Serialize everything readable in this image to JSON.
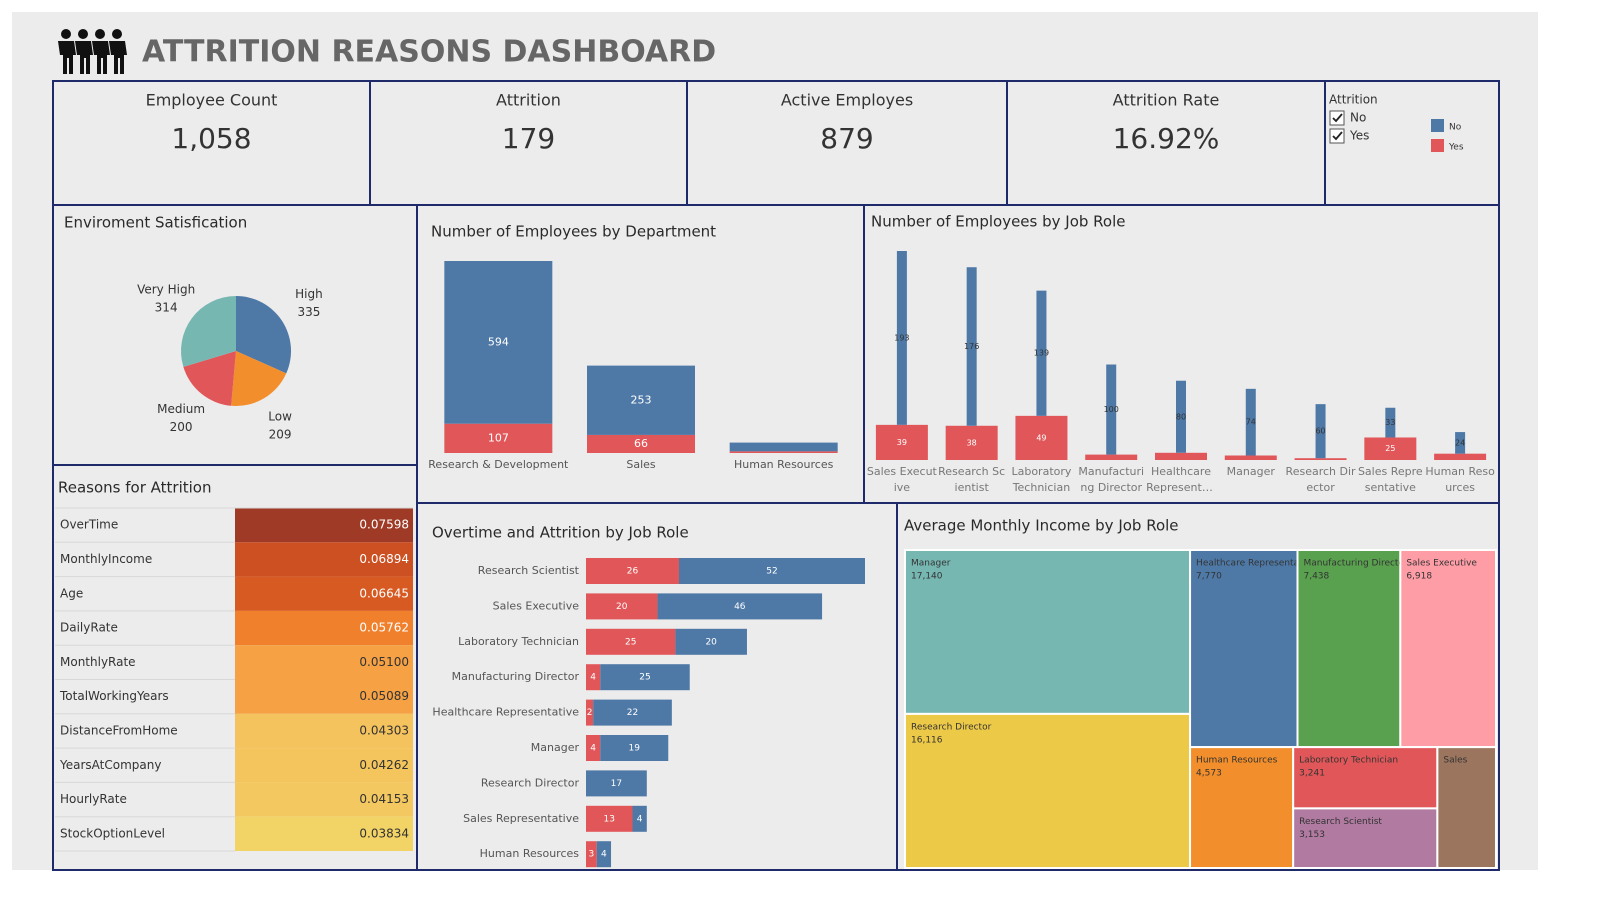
{
  "header": {
    "title": "ATTRITION REASONS DASHBOARD"
  },
  "kpis": [
    {
      "label": "Employee Count",
      "value": "1,058"
    },
    {
      "label": "Attrition",
      "value": "179"
    },
    {
      "label": "Active Employes",
      "value": "879"
    },
    {
      "label": "Attrition Rate",
      "value": "16.92%"
    }
  ],
  "legend": {
    "title": "Attrition",
    "items": [
      "No",
      "Yes"
    ]
  },
  "chart_data": [
    {
      "type": "pie",
      "title": "Enviroment Satisfication",
      "categories": [
        "High",
        "Low",
        "Medium",
        "Very High"
      ],
      "values": [
        335,
        209,
        200,
        314
      ],
      "colors": [
        "#4e79a7",
        "#f28e2b",
        "#e15759",
        "#76b7b2"
      ]
    },
    {
      "type": "stacked-bar",
      "title": "Number of Employees by Department",
      "categories": [
        "Research & Development",
        "Sales",
        "Human Resources"
      ],
      "series": [
        {
          "name": "No",
          "color": "#4e79a7",
          "values": [
            594,
            253,
            32
          ]
        },
        {
          "name": "Yes",
          "color": "#e15759",
          "values": [
            107,
            66,
            6
          ]
        }
      ]
    },
    {
      "type": "stacked-bar-narrow",
      "title": "Number of Employees by Job Role",
      "categories": [
        "Sales Executive",
        "Research Scientist",
        "Laboratory Technician",
        "Manufacturing Director",
        "Healthcare Representative",
        "Manager",
        "Research Director",
        "Sales Representative",
        "Human Resources"
      ],
      "series": [
        {
          "name": "No",
          "color": "#4e79a7",
          "values": [
            193,
            176,
            139,
            100,
            80,
            74,
            60,
            33,
            24
          ]
        },
        {
          "name": "Yes",
          "color": "#e15759",
          "values": [
            39,
            38,
            49,
            6,
            8,
            5,
            2,
            25,
            7
          ]
        }
      ]
    },
    {
      "type": "stacked-hbar",
      "title": "Overtime and Attrition by Job Role",
      "categories": [
        "Research Scientist",
        "Sales Executive",
        "Laboratory Technician",
        "Manufacturing Director",
        "Healthcare Representative",
        "Manager",
        "Research Director",
        "Sales Representative",
        "Human Resources"
      ],
      "series": [
        {
          "name": "No",
          "color": "#4e79a7",
          "values": [
            52,
            46,
            20,
            25,
            22,
            19,
            17,
            4,
            4
          ]
        },
        {
          "name": "Yes",
          "color": "#e15759",
          "values": [
            26,
            20,
            25,
            4,
            2,
            4,
            0,
            13,
            3
          ]
        }
      ]
    },
    {
      "type": "table",
      "title": "Reasons for Attrition",
      "categories": [
        "OverTime",
        "MonthlyIncome",
        "Age",
        "DailyRate",
        "MonthlyRate",
        "TotalWorkingYears",
        "DistanceFromHome",
        "YearsAtCompany",
        "HourlyRate",
        "StockOptionLevel"
      ],
      "values": [
        0.07598,
        0.06894,
        0.06645,
        0.05762,
        0.051,
        0.05089,
        0.04303,
        0.04262,
        0.04153,
        0.03834
      ],
      "value_labels": [
        "0.07598",
        "0.06894",
        "0.06645",
        "0.05762",
        "0.05100",
        "0.05089",
        "0.04303",
        "0.04262",
        "0.04153",
        "0.03834"
      ],
      "color_scale": [
        "#f2d366",
        "#f7ba57",
        "#f5953b",
        "#ec7020",
        "#d05223",
        "#9e3a26"
      ]
    },
    {
      "type": "treemap",
      "title": "Average Monthly Income by Job Role",
      "categories": [
        "Manager",
        "Research Director",
        "Healthcare Representative",
        "Manufacturing Director",
        "Sales Executive",
        "Human Resources",
        "Laboratory Technician",
        "Research Scientist",
        "Sales"
      ],
      "values": [
        17140,
        16116,
        7770,
        7438,
        6918,
        4573,
        3241,
        3153,
        2600
      ],
      "value_labels": [
        "17,140",
        "16,116",
        "7,770",
        "7,438",
        "6,918",
        "4,573",
        "3,241",
        "3,153",
        null
      ],
      "colors": [
        "#76b7b2",
        "#edc948",
        "#4e79a7",
        "#59a14f",
        "#ff9da7",
        "#f28e2b",
        "#e15759",
        "#b07aa1",
        "#9c755f"
      ]
    }
  ]
}
